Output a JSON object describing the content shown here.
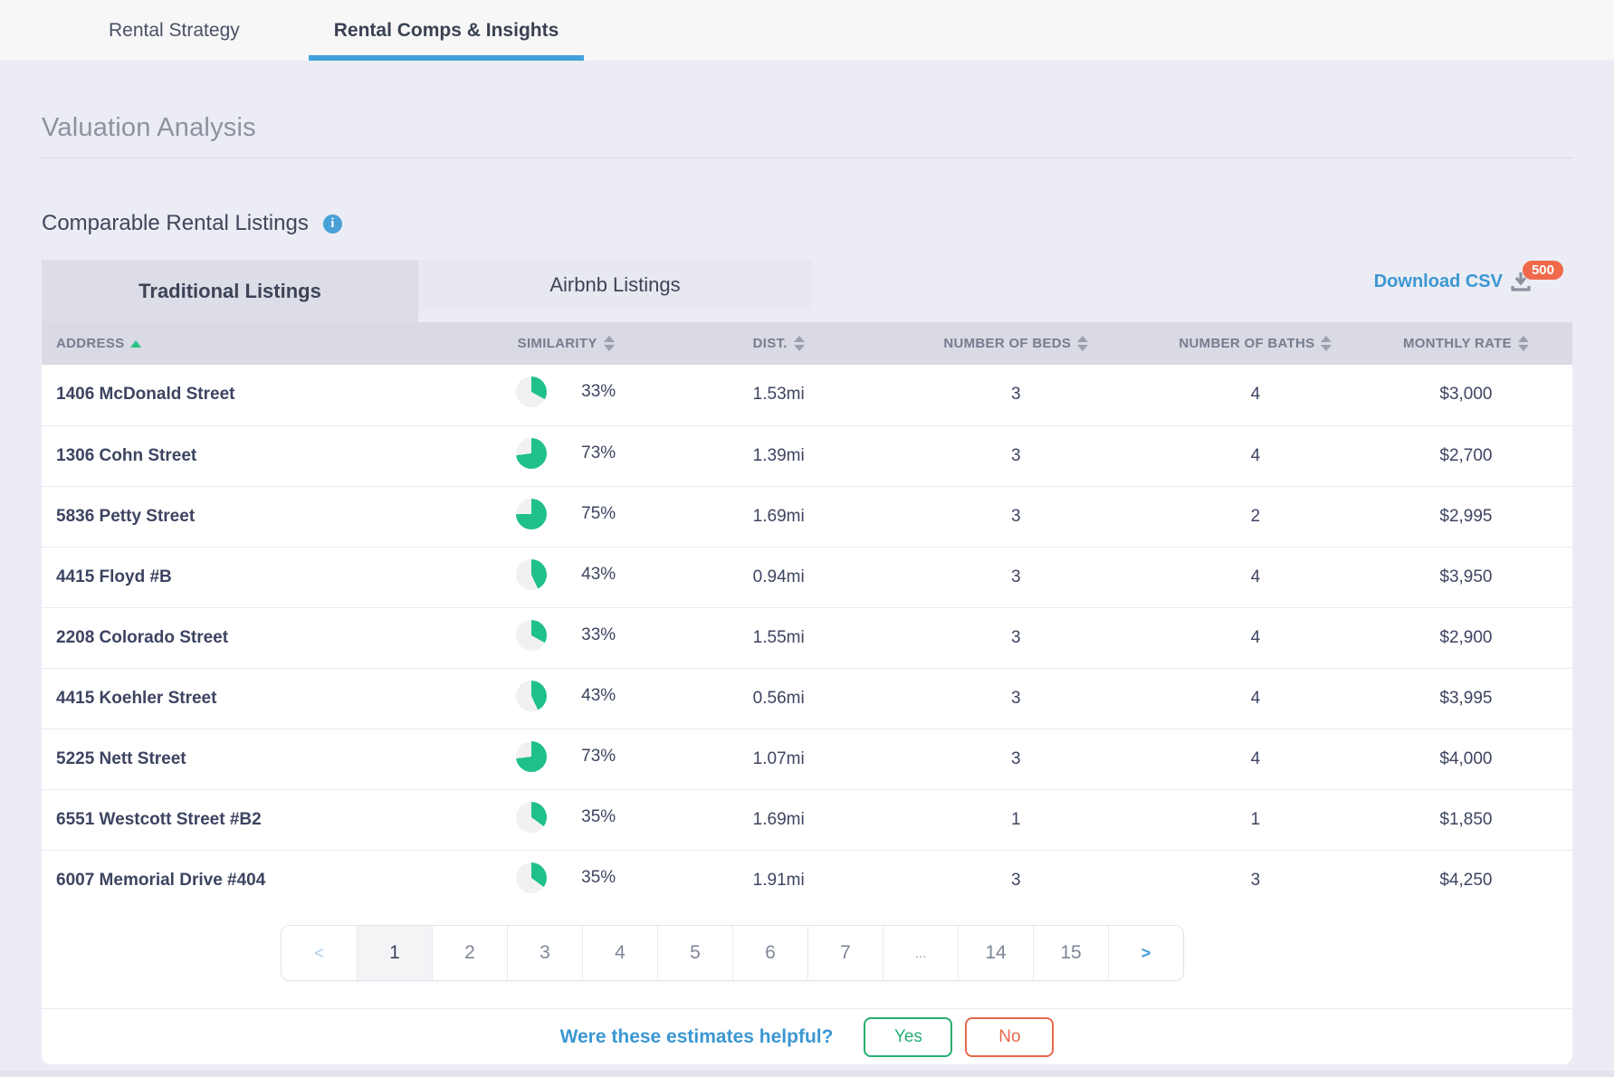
{
  "topbar": {
    "tabs": [
      {
        "label": "Rental Strategy",
        "active": false
      },
      {
        "label": "Rental Comps & Insights",
        "active": true
      }
    ]
  },
  "page": {
    "title": "Valuation Analysis"
  },
  "section": {
    "title": "Comparable Rental Listings"
  },
  "listing_tabs": [
    {
      "label": "Traditional Listings",
      "active": true
    },
    {
      "label": "Airbnb Listings",
      "active": false
    }
  ],
  "download": {
    "label": "Download CSV",
    "badge": "500"
  },
  "table": {
    "columns": [
      {
        "label": "ADDRESS",
        "sort": "asc"
      },
      {
        "label": "SIMILARITY",
        "sort": "both"
      },
      {
        "label": "DIST.",
        "sort": "both"
      },
      {
        "label": "NUMBER OF BEDS",
        "sort": "both"
      },
      {
        "label": "NUMBER OF BATHS",
        "sort": "both"
      },
      {
        "label": "MONTHLY RATE",
        "sort": "both"
      }
    ],
    "rows": [
      {
        "address": "1406 McDonald Street",
        "similarity_pct": 33,
        "similarity_label": "33%",
        "distance": "1.53mi",
        "beds": "3",
        "baths": "4",
        "monthly_rate": "$3,000"
      },
      {
        "address": "1306 Cohn Street",
        "similarity_pct": 73,
        "similarity_label": "73%",
        "distance": "1.39mi",
        "beds": "3",
        "baths": "4",
        "monthly_rate": "$2,700"
      },
      {
        "address": "5836 Petty Street",
        "similarity_pct": 75,
        "similarity_label": "75%",
        "distance": "1.69mi",
        "beds": "3",
        "baths": "2",
        "monthly_rate": "$2,995"
      },
      {
        "address": "4415 Floyd #B",
        "similarity_pct": 43,
        "similarity_label": "43%",
        "distance": "0.94mi",
        "beds": "3",
        "baths": "4",
        "monthly_rate": "$3,950"
      },
      {
        "address": "2208 Colorado Street",
        "similarity_pct": 33,
        "similarity_label": "33%",
        "distance": "1.55mi",
        "beds": "3",
        "baths": "4",
        "monthly_rate": "$2,900"
      },
      {
        "address": "4415 Koehler Street",
        "similarity_pct": 43,
        "similarity_label": "43%",
        "distance": "0.56mi",
        "beds": "3",
        "baths": "4",
        "monthly_rate": "$3,995"
      },
      {
        "address": "5225 Nett Street",
        "similarity_pct": 73,
        "similarity_label": "73%",
        "distance": "1.07mi",
        "beds": "3",
        "baths": "4",
        "monthly_rate": "$4,000"
      },
      {
        "address": "6551 Westcott Street #B2",
        "similarity_pct": 35,
        "similarity_label": "35%",
        "distance": "1.69mi",
        "beds": "1",
        "baths": "1",
        "monthly_rate": "$1,850"
      },
      {
        "address": "6007 Memorial Drive #404",
        "similarity_pct": 35,
        "similarity_label": "35%",
        "distance": "1.91mi",
        "beds": "3",
        "baths": "3",
        "monthly_rate": "$4,250"
      }
    ]
  },
  "pagination": {
    "prev": "<",
    "next": ">",
    "pages": [
      "1",
      "2",
      "3",
      "4",
      "5",
      "6",
      "7",
      "...",
      "14",
      "15"
    ],
    "active_page": "1"
  },
  "feedback": {
    "question": "Were these estimates helpful?",
    "yes": "Yes",
    "no": "No"
  },
  "colors": {
    "accent_blue": "#3f9ed8",
    "pie_green": "#1fc08a",
    "pie_rest_gray": "#f1f1f3",
    "badge_orange": "#f0694a",
    "yes_green": "#27ae70",
    "no_red": "#e8684b",
    "text_navy": "#3d4461"
  }
}
